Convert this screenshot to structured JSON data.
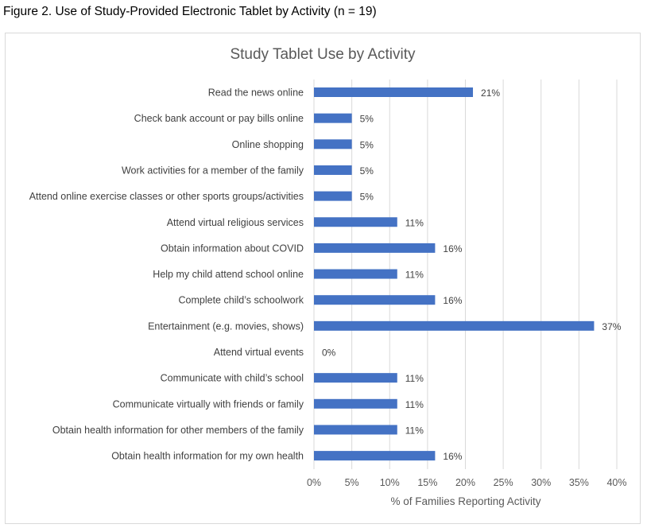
{
  "figure": {
    "caption": "Figure 2. Use of Study-Provided Electronic Tablet by Activity (n = 19)"
  },
  "chart_data": {
    "type": "bar",
    "orientation": "horizontal",
    "title": "Study Tablet Use by Activity",
    "xlabel": "% of Families Reporting Activity",
    "ylabel": "",
    "xlim": [
      0,
      40
    ],
    "x_ticks": [
      "0%",
      "5%",
      "10%",
      "15%",
      "20%",
      "25%",
      "30%",
      "35%",
      "40%"
    ],
    "grid": true,
    "bar_color": "#4472c4",
    "categories": [
      "Read the news online",
      "Check bank account or pay bills online",
      "Online shopping",
      "Work activities for a member of the family",
      "Attend online exercise classes or other sports groups/activities",
      "Attend virtual religious services",
      "Obtain information about COVID",
      "Help my child attend school online",
      "Complete child’s schoolwork",
      "Entertainment (e.g. movies, shows)",
      "Attend virtual events",
      "Communicate with child’s school",
      "Communicate virtually with friends or family",
      "Obtain health information for other members of the family",
      "Obtain health information for my own health"
    ],
    "values": [
      21,
      5,
      5,
      5,
      5,
      11,
      16,
      11,
      16,
      37,
      0,
      11,
      11,
      11,
      16
    ],
    "data_labels": [
      "21%",
      "5%",
      "5%",
      "5%",
      "5%",
      "11%",
      "16%",
      "11%",
      "16%",
      "37%",
      "0%",
      "11%",
      "11%",
      "11%",
      "16%"
    ]
  }
}
